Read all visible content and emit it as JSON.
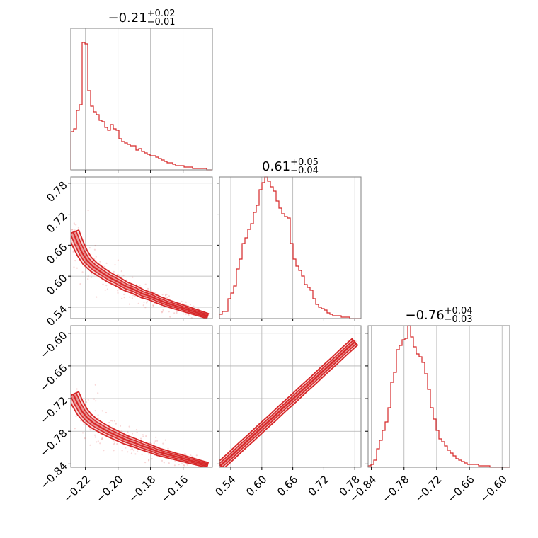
{
  "colors": {
    "series": "#d62728",
    "grid": "#b0b0b0",
    "frame": "#808080",
    "background": "#ffffff"
  },
  "chart_data": {
    "type": "corner",
    "titles": [
      {
        "value": "−0.21",
        "plus": "+0.02",
        "minus": "−0.01"
      },
      {
        "value": "0.61",
        "plus": "+0.05",
        "minus": "−0.04"
      },
      {
        "value": "−0.76",
        "plus": "+0.04",
        "minus": "−0.03"
      }
    ],
    "params": [
      {
        "range": [
          -0.229,
          -0.142
        ],
        "ticks": [
          -0.22,
          -0.2,
          -0.18,
          -0.16
        ],
        "tick_labels": [
          "−0.22",
          "−0.20",
          "−0.18",
          "−0.16"
        ]
      },
      {
        "range": [
          0.518,
          0.792
        ],
        "ticks": [
          0.54,
          0.6,
          0.66,
          0.72,
          0.78
        ],
        "tick_labels": [
          "0.54",
          "0.60",
          "0.66",
          "0.72",
          "0.78"
        ]
      },
      {
        "range": [
          -0.846,
          -0.586
        ],
        "ticks": [
          -0.84,
          -0.78,
          -0.72,
          -0.66,
          -0.6
        ],
        "tick_labels": [
          "−0.84",
          "−0.78",
          "−0.72",
          "−0.66",
          "−0.60"
        ]
      }
    ],
    "histograms": [
      {
        "param": 0,
        "counts": [
          0.27,
          0.29,
          0.42,
          0.46,
          0.9,
          0.89,
          0.56,
          0.45,
          0.41,
          0.39,
          0.35,
          0.34,
          0.3,
          0.28,
          0.32,
          0.29,
          0.28,
          0.22,
          0.2,
          0.19,
          0.18,
          0.17,
          0.17,
          0.14,
          0.15,
          0.13,
          0.12,
          0.11,
          0.1,
          0.1,
          0.09,
          0.08,
          0.07,
          0.06,
          0.05,
          0.05,
          0.04,
          0.03,
          0.03,
          0.03,
          0.02,
          0.02,
          0.02,
          0.01,
          0.01,
          0.01,
          0.01,
          0.01,
          0.0,
          0.0
        ]
      },
      {
        "param": 1,
        "counts": [
          0.03,
          0.05,
          0.05,
          0.14,
          0.18,
          0.23,
          0.35,
          0.42,
          0.53,
          0.57,
          0.63,
          0.67,
          0.75,
          0.8,
          0.91,
          0.96,
          1.0,
          0.97,
          0.93,
          0.9,
          0.83,
          0.78,
          0.74,
          0.72,
          0.71,
          0.53,
          0.42,
          0.37,
          0.34,
          0.3,
          0.24,
          0.22,
          0.2,
          0.14,
          0.1,
          0.08,
          0.07,
          0.06,
          0.04,
          0.03,
          0.02,
          0.02,
          0.02,
          0.01,
          0.01,
          0.01,
          0.0,
          0.0,
          0.0,
          0.0
        ]
      },
      {
        "param": 2,
        "counts": [
          0.01,
          0.02,
          0.05,
          0.13,
          0.19,
          0.26,
          0.32,
          0.42,
          0.6,
          0.67,
          0.83,
          0.86,
          0.9,
          0.91,
          1.0,
          0.92,
          0.85,
          0.8,
          0.78,
          0.74,
          0.66,
          0.55,
          0.42,
          0.34,
          0.26,
          0.2,
          0.18,
          0.15,
          0.12,
          0.1,
          0.08,
          0.06,
          0.05,
          0.04,
          0.03,
          0.02,
          0.02,
          0.02,
          0.02,
          0.01,
          0.01,
          0.01,
          0.01,
          0.0,
          0.0,
          0.0,
          0.0,
          0.0,
          0.0,
          0.0
        ]
      }
    ],
    "pairs": [
      {
        "x_param": 0,
        "y_param": 1,
        "curve": [
          [
            -0.2275,
            0.685
          ],
          [
            -0.225,
            0.665
          ],
          [
            -0.222,
            0.645
          ],
          [
            -0.219,
            0.63
          ],
          [
            -0.215,
            0.618
          ],
          [
            -0.21,
            0.607
          ],
          [
            -0.205,
            0.597
          ],
          [
            -0.2,
            0.589
          ],
          [
            -0.195,
            0.58
          ],
          [
            -0.19,
            0.574
          ],
          [
            -0.185,
            0.566
          ],
          [
            -0.18,
            0.561
          ],
          [
            -0.175,
            0.554
          ],
          [
            -0.17,
            0.548
          ],
          [
            -0.165,
            0.543
          ],
          [
            -0.16,
            0.538
          ],
          [
            -0.155,
            0.533
          ],
          [
            -0.15,
            0.528
          ],
          [
            -0.145,
            0.523
          ]
        ]
      },
      {
        "x_param": 0,
        "y_param": 2,
        "curve": [
          [
            -0.2275,
            -0.712
          ],
          [
            -0.225,
            -0.728
          ],
          [
            -0.222,
            -0.744
          ],
          [
            -0.219,
            -0.755
          ],
          [
            -0.215,
            -0.765
          ],
          [
            -0.21,
            -0.774
          ],
          [
            -0.205,
            -0.782
          ],
          [
            -0.2,
            -0.789
          ],
          [
            -0.195,
            -0.796
          ],
          [
            -0.19,
            -0.801
          ],
          [
            -0.185,
            -0.807
          ],
          [
            -0.18,
            -0.812
          ],
          [
            -0.175,
            -0.818
          ],
          [
            -0.17,
            -0.822
          ],
          [
            -0.165,
            -0.826
          ],
          [
            -0.16,
            -0.83
          ],
          [
            -0.155,
            -0.834
          ],
          [
            -0.15,
            -0.838
          ],
          [
            -0.145,
            -0.842
          ]
        ]
      },
      {
        "x_param": 1,
        "y_param": 2,
        "curve": [
          [
            0.52,
            -0.843
          ],
          [
            0.54,
            -0.826
          ],
          [
            0.56,
            -0.808
          ],
          [
            0.58,
            -0.791
          ],
          [
            0.6,
            -0.773
          ],
          [
            0.62,
            -0.756
          ],
          [
            0.64,
            -0.738
          ],
          [
            0.66,
            -0.721
          ],
          [
            0.68,
            -0.703
          ],
          [
            0.7,
            -0.686
          ],
          [
            0.72,
            -0.668
          ],
          [
            0.74,
            -0.651
          ],
          [
            0.76,
            -0.633
          ],
          [
            0.78,
            -0.616
          ]
        ]
      }
    ]
  }
}
